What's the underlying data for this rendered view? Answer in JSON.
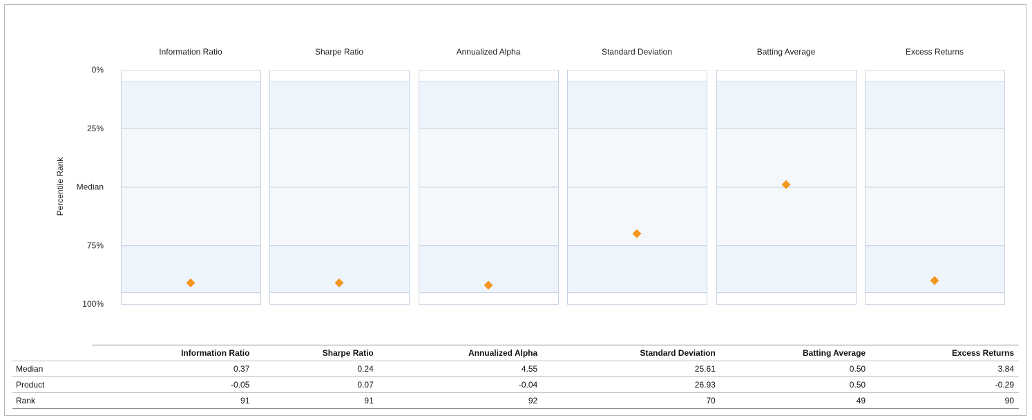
{
  "chart_data": {
    "type": "scatter",
    "ylabel": "Percentile Rank",
    "y_tick_labels": [
      "0%",
      "25%",
      "Median",
      "75%",
      "100%"
    ],
    "y_tick_values": [
      0,
      25,
      50,
      75,
      100
    ],
    "ylim": [
      0,
      100
    ],
    "y_inverted": true,
    "categories": [
      "Information Ratio",
      "Sharpe Ratio",
      "Annualized Alpha",
      "Standard Deviation",
      "Batting Average",
      "Excess Returns"
    ],
    "percentile_bands": [
      5,
      25,
      50,
      75,
      95
    ],
    "values": [
      91,
      91,
      92,
      70,
      49,
      90
    ],
    "marker_color": "#f5961e",
    "band_colors": {
      "outer": "#eef4fb",
      "inner": "#f4f8fa",
      "line": "#c5d3e2"
    }
  },
  "table": {
    "headers": [
      "Information Ratio",
      "Sharpe Ratio",
      "Annualized Alpha",
      "Standard Deviation",
      "Batting Average",
      "Excess Returns"
    ],
    "rows": [
      {
        "label": "Median",
        "values": [
          "0.37",
          "0.24",
          "4.55",
          "25.61",
          "0.50",
          "3.84"
        ]
      },
      {
        "label": "Product",
        "values": [
          "-0.05",
          "0.07",
          "-0.04",
          "26.93",
          "0.50",
          "-0.29"
        ]
      },
      {
        "label": "Rank",
        "values": [
          "91",
          "91",
          "92",
          "70",
          "49",
          "90"
        ]
      }
    ]
  }
}
